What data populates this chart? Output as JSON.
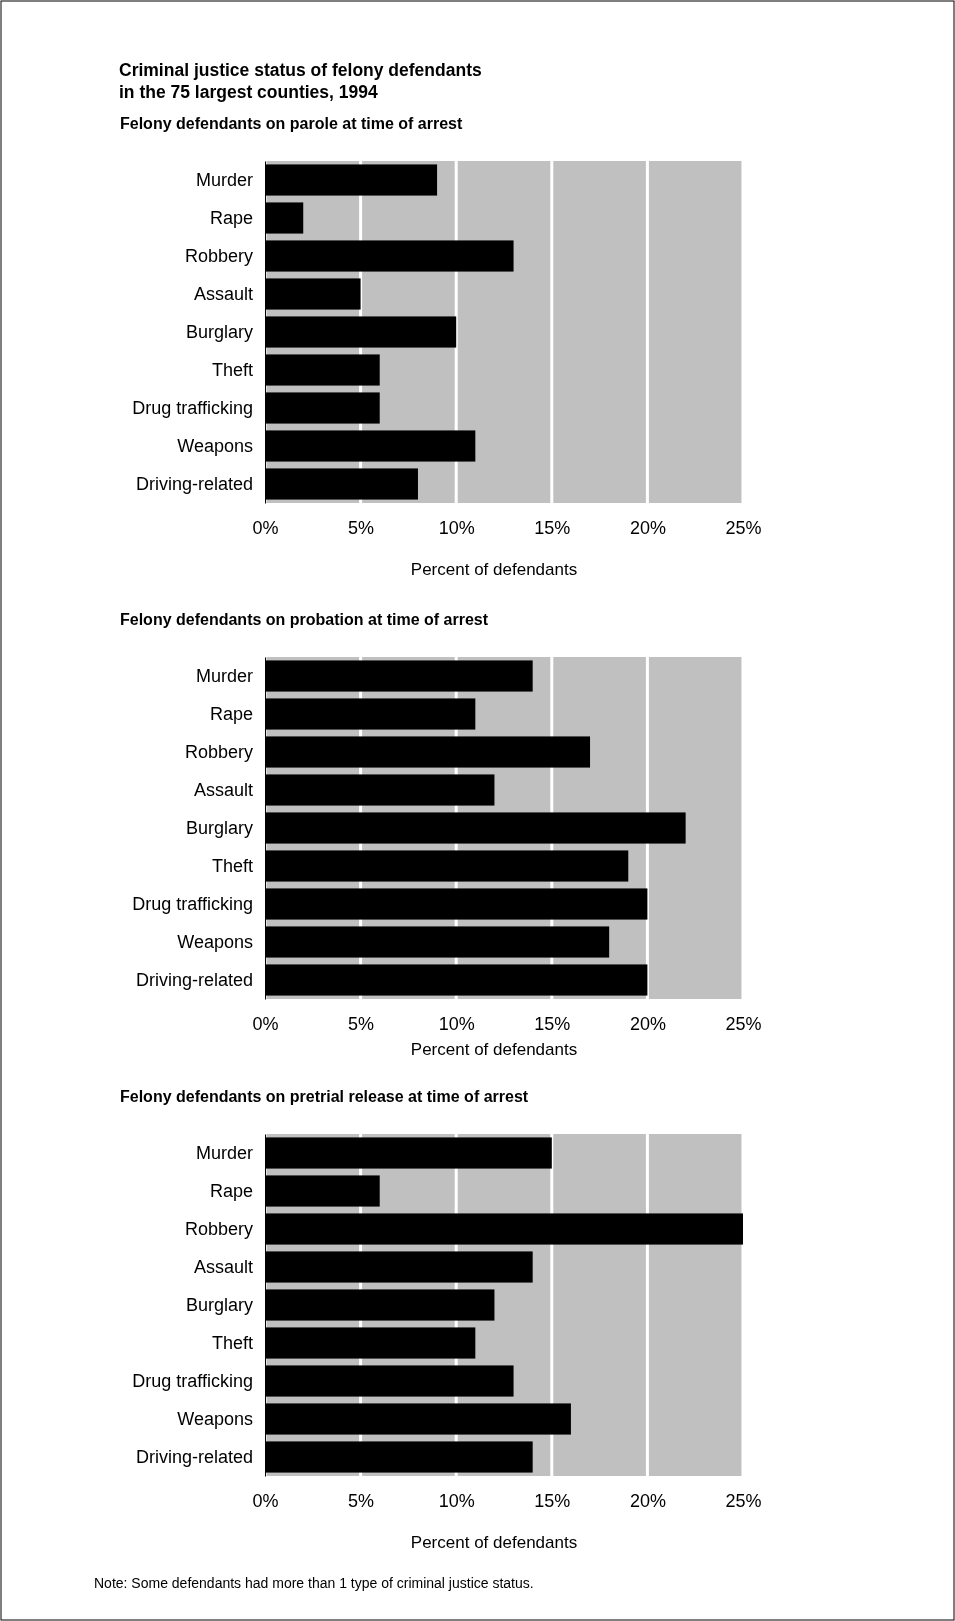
{
  "chart_data": [
    {
      "type": "bar",
      "orientation": "horizontal",
      "title": "Criminal justice status of felony defendants\nin the 75 largest counties, 1994",
      "subtitle": "Felony defendants on parole at time of arrest",
      "categories": [
        "Murder",
        "Rape",
        "Robbery",
        "Assault",
        "Burglary",
        "Theft",
        "Drug trafficking",
        "Weapons",
        "Driving-related"
      ],
      "values": [
        9,
        2,
        13,
        5,
        10,
        6,
        6,
        11,
        8
      ],
      "color": "#000000",
      "xlim": [
        0,
        25
      ],
      "xticks": [
        {
          "value": 0,
          "label": "0%"
        },
        {
          "value": 5,
          "label": "5%"
        },
        {
          "value": 10,
          "label": "10%"
        },
        {
          "value": 15,
          "label": "15%"
        },
        {
          "value": 20,
          "label": "20%"
        },
        {
          "value": 25,
          "label": "25%"
        }
      ],
      "xlabel": "Percent of defendants",
      "grid": "x"
    },
    {
      "type": "bar",
      "orientation": "horizontal",
      "subtitle": "Felony defendants on probation at time of arrest",
      "categories": [
        "Murder",
        "Rape",
        "Robbery",
        "Assault",
        "Burglary",
        "Theft",
        "Drug trafficking",
        "Weapons",
        "Driving-related"
      ],
      "values": [
        14,
        11,
        17,
        12,
        22,
        19,
        20,
        18,
        20
      ],
      "color": "#000000",
      "xlim": [
        0,
        25
      ],
      "xticks": [
        {
          "value": 0,
          "label": "0%"
        },
        {
          "value": 5,
          "label": "5%"
        },
        {
          "value": 10,
          "label": "10%"
        },
        {
          "value": 15,
          "label": "15%"
        },
        {
          "value": 20,
          "label": "20%"
        },
        {
          "value": 25,
          "label": "25%"
        }
      ],
      "xlabel": "Percent of defendants",
      "grid": "x"
    },
    {
      "type": "bar",
      "orientation": "horizontal",
      "subtitle": "Felony defendants on pretrial release at time of arrest",
      "categories": [
        "Murder",
        "Rape",
        "Robbery",
        "Assault",
        "Burglary",
        "Theft",
        "Drug trafficking",
        "Weapons",
        "Driving-related"
      ],
      "values": [
        15,
        6,
        25,
        14,
        12,
        11,
        13,
        16,
        14
      ],
      "color": "#000000",
      "xlim": [
        0,
        25
      ],
      "xticks": [
        {
          "value": 0,
          "label": "0%"
        },
        {
          "value": 5,
          "label": "5%"
        },
        {
          "value": 10,
          "label": "10%"
        },
        {
          "value": 15,
          "label": "15%"
        },
        {
          "value": 20,
          "label": "20%"
        },
        {
          "value": 25,
          "label": "25%"
        }
      ],
      "xlabel": "Percent of defendants",
      "grid": "x",
      "annotations": [
        "Note:  Some defendants had more than 1 type of criminal justice status."
      ]
    }
  ]
}
